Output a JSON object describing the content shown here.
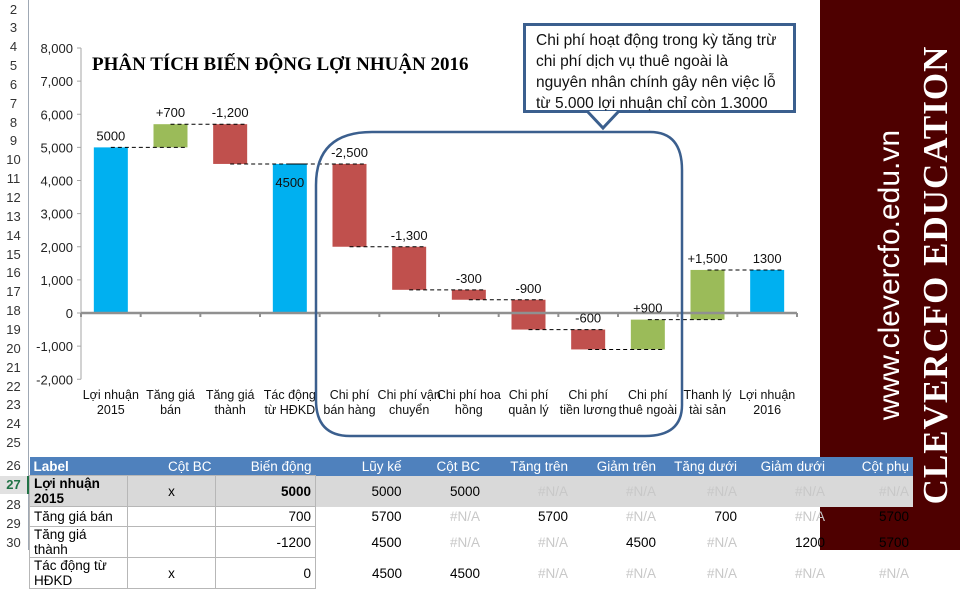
{
  "sheet": {
    "row_numbers": [
      "2",
      "3",
      "4",
      "5",
      "6",
      "7",
      "8",
      "9",
      "10",
      "11",
      "12",
      "13",
      "14",
      "15",
      "16",
      "17",
      "18",
      "19",
      "20",
      "21",
      "22",
      "23",
      "24",
      "25",
      "26",
      "27",
      "28",
      "29",
      "30"
    ],
    "active_row": "27"
  },
  "chart_data": {
    "type": "waterfall",
    "title": "PHÂN TÍCH BIẾN ĐỘNG LỢI NHUẬN 2016",
    "xlabel": "",
    "ylabel": "",
    "ylim": [
      -2000,
      8000
    ],
    "yticks": [
      -2000,
      -1000,
      0,
      1000,
      2000,
      3000,
      4000,
      5000,
      6000,
      7000,
      8000
    ],
    "ytick_labels": [
      "-2,000",
      "-1,000",
      "0",
      "1,000",
      "2,000",
      "3,000",
      "4,000",
      "5,000",
      "6,000",
      "7,000",
      "8,000"
    ],
    "grid": false,
    "colors": {
      "total": "#00b0f0",
      "increase": "#9bbb59",
      "decrease": "#c0504d",
      "connector": "#000000"
    },
    "categories": [
      "Lợi nhuận 2015",
      "Tăng giá bán",
      "Tăng giá thành",
      "Tác động từ HĐKD",
      "Chi phí bán hàng",
      "Chi phí vận chuyển",
      "Chi phí hoa hồng",
      "Chi phí quản lý",
      "Chi phí tiền lương",
      "Chi phí thuê ngoài",
      "Thanh lý tài sản",
      "Lợi nhuận 2016"
    ],
    "category_lines": [
      [
        "Lợi nhuận",
        "2015"
      ],
      [
        "Tăng giá",
        "bán"
      ],
      [
        "Tăng giá",
        "thành"
      ],
      [
        "Tác động",
        "từ HĐKD"
      ],
      [
        "Chi phí",
        "bán hàng"
      ],
      [
        "Chi phí vận",
        "chuyển"
      ],
      [
        "Chi phí hoa",
        "hồng"
      ],
      [
        "Chi phí",
        "quản lý"
      ],
      [
        "Chi phí",
        "tiền lương"
      ],
      [
        "Chi phí",
        "thuê ngoài"
      ],
      [
        "Thanh lý",
        "tài sản"
      ],
      [
        "Lợi nhuận",
        "2016"
      ]
    ],
    "bars": [
      {
        "kind": "total",
        "start": 0,
        "end": 5000,
        "label": "5000"
      },
      {
        "kind": "increase",
        "start": 5000,
        "end": 5700,
        "label": "+700"
      },
      {
        "kind": "decrease",
        "start": 5700,
        "end": 4500,
        "label": "-1,200"
      },
      {
        "kind": "total",
        "start": 0,
        "end": 4500,
        "label": "4500"
      },
      {
        "kind": "decrease",
        "start": 4500,
        "end": 2000,
        "label": "-2,500"
      },
      {
        "kind": "decrease",
        "start": 2000,
        "end": 700,
        "label": "-1,300"
      },
      {
        "kind": "decrease",
        "start": 700,
        "end": 400,
        "label": "-300"
      },
      {
        "kind": "decrease",
        "start": 400,
        "end": -500,
        "label": "-900"
      },
      {
        "kind": "decrease",
        "start": -500,
        "end": -1100,
        "label": "-600"
      },
      {
        "kind": "increase",
        "start": -1100,
        "end": -200,
        "label": "+900"
      },
      {
        "kind": "increase",
        "start": -200,
        "end": 1300,
        "label": "+1,500"
      },
      {
        "kind": "total",
        "start": 0,
        "end": 1300,
        "label": "1300"
      }
    ],
    "annotation": "Chi phí hoạt động trong kỳ tăng trừ chi phí dịch vụ thuê ngoài là nguyên nhân chính gây nên việc lỗ từ 5.000 lợi nhuận chỉ còn 1.3000",
    "highlight_range": [
      "Chi phí bán hàng",
      "Chi phí thuê ngoài"
    ]
  },
  "branding": {
    "url": "www.clevercfo.edu.vn",
    "name": "CLEVERCFO EDUCATION"
  },
  "table": {
    "headers": [
      "Label",
      "Cột BC",
      "Biến động",
      "Lũy kế",
      "Cột BC",
      "Tăng  trên",
      "Giảm trên",
      "Tăng dưới",
      "Giảm dưới",
      "Cột phụ"
    ],
    "rows": [
      [
        "Lợi nhuận 2015",
        "x",
        "5000",
        "5000",
        "5000",
        "#N/A",
        "#N/A",
        "#N/A",
        "#N/A",
        "#N/A"
      ],
      [
        "Tăng giá bán",
        "",
        "700",
        "5700",
        "#N/A",
        "5700",
        "#N/A",
        "700",
        "#N/A",
        "5700"
      ],
      [
        "Tăng giá thành",
        "",
        "-1200",
        "4500",
        "#N/A",
        "#N/A",
        "4500",
        "#N/A",
        "1200",
        "5700"
      ],
      [
        "Tác động từ HĐKD",
        "x",
        "0",
        "4500",
        "4500",
        "#N/A",
        "#N/A",
        "#N/A",
        "#N/A",
        "#N/A"
      ]
    ]
  }
}
